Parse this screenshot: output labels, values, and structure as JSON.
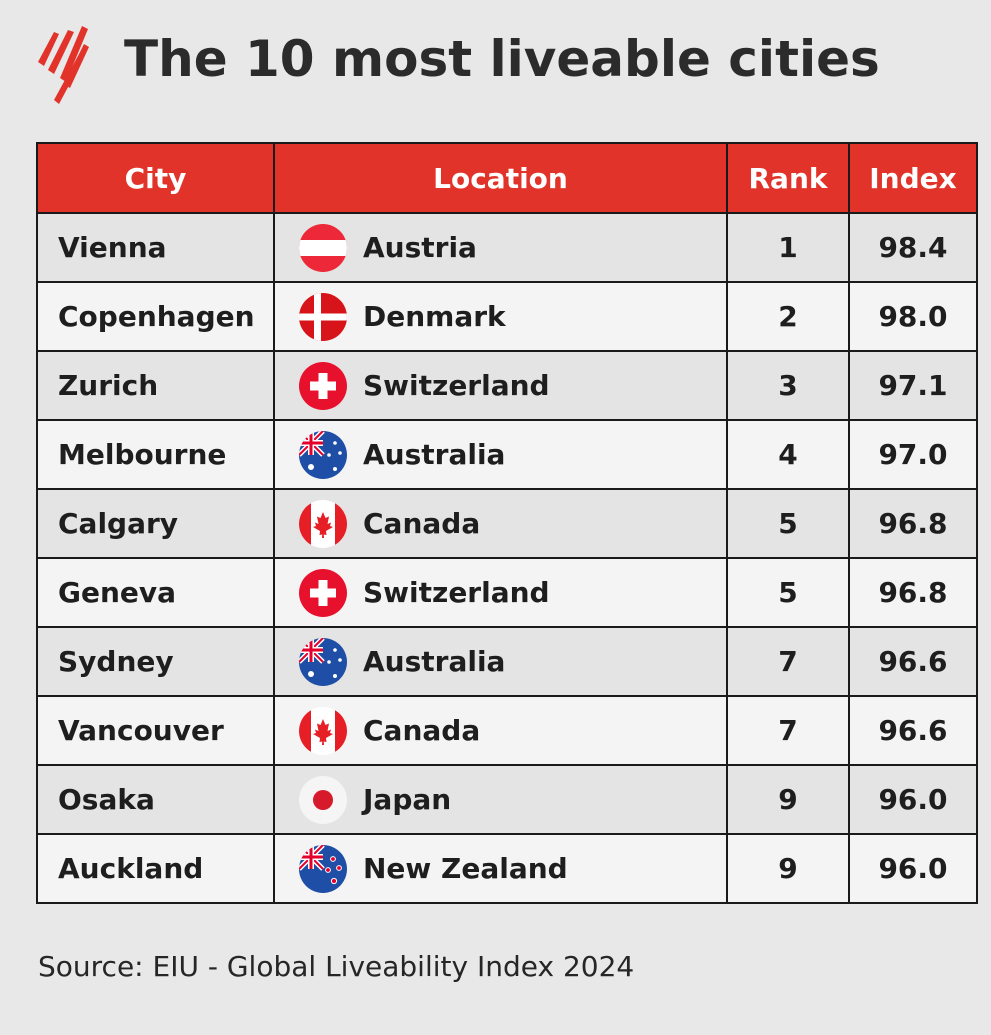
{
  "page": {
    "title": "The 10 most liveable cities",
    "source": "Source: EIU - Global Liveability Index 2024",
    "logo_icon": "sbs-logo-icon",
    "accent_color": "#e2332a"
  },
  "chart_data": {
    "type": "table",
    "title": "The 10 most liveable cities",
    "columns": [
      "City",
      "Location",
      "Rank",
      "Index"
    ],
    "rows": [
      {
        "city": "Vienna",
        "location": "Austria",
        "rank": "1",
        "index": "98.4",
        "flag": "austria"
      },
      {
        "city": "Copenhagen",
        "location": "Denmark",
        "rank": "2",
        "index": "98.0",
        "flag": "denmark"
      },
      {
        "city": "Zurich",
        "location": "Switzerland",
        "rank": "3",
        "index": "97.1",
        "flag": "switzerland"
      },
      {
        "city": "Melbourne",
        "location": "Australia",
        "rank": "4",
        "index": "97.0",
        "flag": "australia"
      },
      {
        "city": "Calgary",
        "location": "Canada",
        "rank": "5",
        "index": "96.8",
        "flag": "canada"
      },
      {
        "city": "Geneva",
        "location": "Switzerland",
        "rank": "5",
        "index": "96.8",
        "flag": "switzerland"
      },
      {
        "city": "Sydney",
        "location": "Australia",
        "rank": "7",
        "index": "96.6",
        "flag": "australia"
      },
      {
        "city": "Vancouver",
        "location": "Canada",
        "rank": "7",
        "index": "96.6",
        "flag": "canada"
      },
      {
        "city": "Osaka",
        "location": "Japan",
        "rank": "9",
        "index": "96.0",
        "flag": "japan"
      },
      {
        "city": "Auckland",
        "location": "New Zealand",
        "rank": "9",
        "index": "96.0",
        "flag": "new-zealand"
      }
    ]
  }
}
